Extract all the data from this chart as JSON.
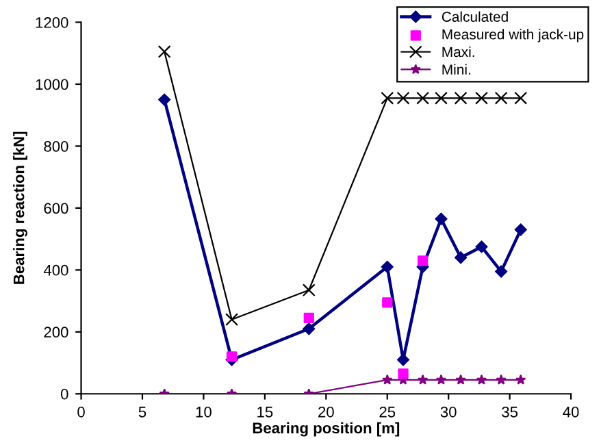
{
  "chart_data": {
    "type": "line",
    "xlabel": "Bearing position [m]",
    "ylabel": "Bearing reaction [kN]",
    "xlim": [
      0,
      40
    ],
    "xticks": [
      0,
      5,
      10,
      15,
      20,
      25,
      30,
      35,
      40
    ],
    "ylim": [
      0,
      1200
    ],
    "yticks": [
      0,
      200,
      400,
      600,
      800,
      1000,
      1200
    ],
    "grid": false,
    "legend": "top right",
    "series": [
      {
        "name": "Calculated",
        "color": "#000080",
        "marker": "diamond",
        "x": [
          6.8,
          12.3,
          18.6,
          25.0,
          26.3,
          27.9,
          29.4,
          31.0,
          32.7,
          34.3,
          35.9
        ],
        "values": [
          950,
          110,
          210,
          410,
          110,
          410,
          565,
          440,
          475,
          395,
          530
        ]
      },
      {
        "name": "Measured with jack-up",
        "type": "scatter",
        "color": "#ff00ff",
        "marker": "square",
        "x": [
          12.3,
          18.6,
          25.0,
          26.3,
          27.9
        ],
        "values": [
          120,
          245,
          295,
          65,
          430
        ]
      },
      {
        "name": "Maxi.",
        "color": "#000000",
        "marker": "cross",
        "x": [
          6.8,
          12.3,
          18.6,
          25.0,
          26.3,
          27.9,
          29.4,
          31.0,
          32.7,
          34.3,
          35.9
        ],
        "values": [
          1105,
          240,
          335,
          955,
          955,
          955,
          955,
          955,
          955,
          955,
          955
        ]
      },
      {
        "name": "Mini.",
        "color": "#800080",
        "marker": "star",
        "x": [
          6.8,
          12.3,
          18.6,
          25.0,
          26.3,
          27.9,
          29.4,
          31.0,
          32.7,
          34.3,
          35.9
        ],
        "values": [
          0,
          0,
          0,
          45,
          45,
          45,
          45,
          45,
          45,
          45,
          45
        ]
      }
    ]
  }
}
